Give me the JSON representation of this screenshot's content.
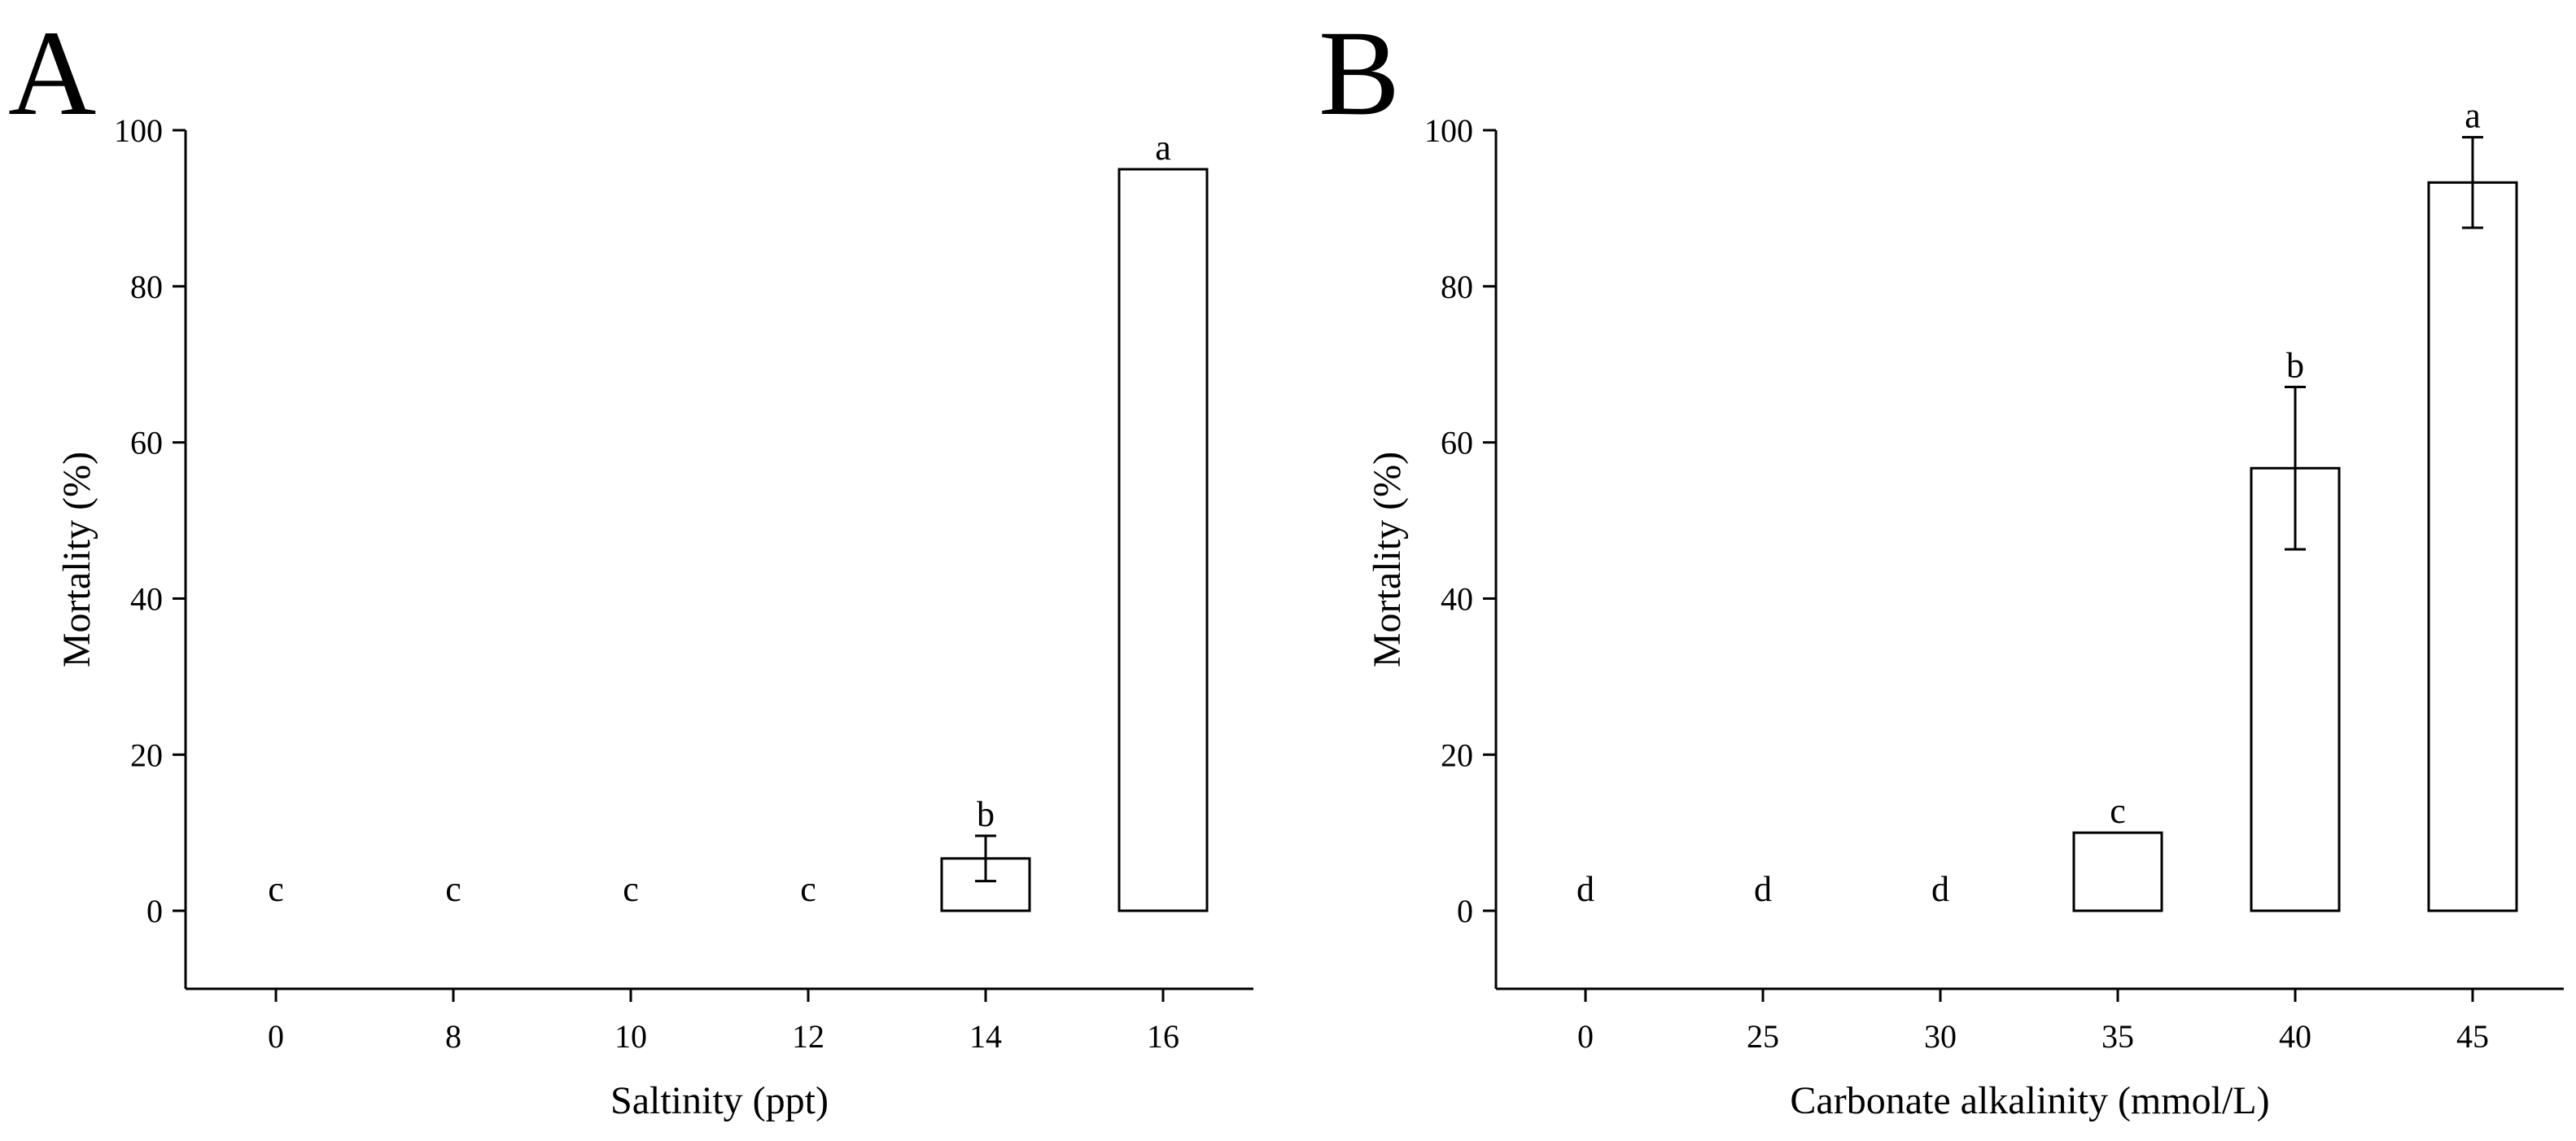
{
  "chart_data": [
    {
      "panel": "A",
      "type": "bar",
      "title": "",
      "xlabel": "Saltinity (ppt)",
      "ylabel": "Mortality (%)",
      "ylim": [
        -10,
        100
      ],
      "yticks": [
        0,
        20,
        40,
        60,
        80,
        100
      ],
      "grid": false,
      "categories": [
        "0",
        "8",
        "10",
        "12",
        "14",
        "16"
      ],
      "values": [
        0,
        0,
        0,
        0,
        6.7,
        95
      ],
      "errors": [
        0,
        0,
        0,
        0,
        2.9,
        0
      ],
      "significance": [
        "c",
        "c",
        "c",
        "c",
        "b",
        "a"
      ]
    },
    {
      "panel": "B",
      "type": "bar",
      "title": "",
      "xlabel": "Carbonate alkalinity (mmol/L)",
      "ylabel": "Mortality (%)",
      "ylim": [
        -10,
        100
      ],
      "yticks": [
        0,
        20,
        40,
        60,
        80,
        100
      ],
      "grid": false,
      "categories": [
        "0",
        "25",
        "30",
        "35",
        "40",
        "45"
      ],
      "values": [
        0,
        0,
        0,
        10,
        56.7,
        93.3
      ],
      "errors": [
        0,
        0,
        0,
        0,
        10.4,
        5.8
      ],
      "significance": [
        "d",
        "d",
        "d",
        "c",
        "b",
        "a"
      ]
    }
  ],
  "colors": {
    "bar_fill": "#ffffff",
    "stroke": "#000000",
    "text": "#000000"
  }
}
